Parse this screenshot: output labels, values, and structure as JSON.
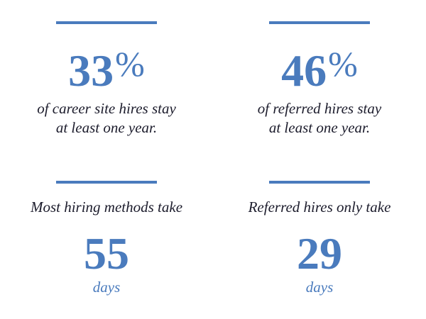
{
  "stats": [
    {
      "number": "33",
      "unit": "%",
      "caption": [
        "of career site hires stay",
        "at least one year."
      ]
    },
    {
      "number": "46",
      "unit": "%",
      "caption": [
        "of referred hires stay",
        "at least one year."
      ]
    }
  ],
  "durations": [
    {
      "lead": "Most hiring methods take",
      "number": "55",
      "unit": "days"
    },
    {
      "lead": "Referred hires only take",
      "number": "29",
      "unit": "days"
    }
  ]
}
